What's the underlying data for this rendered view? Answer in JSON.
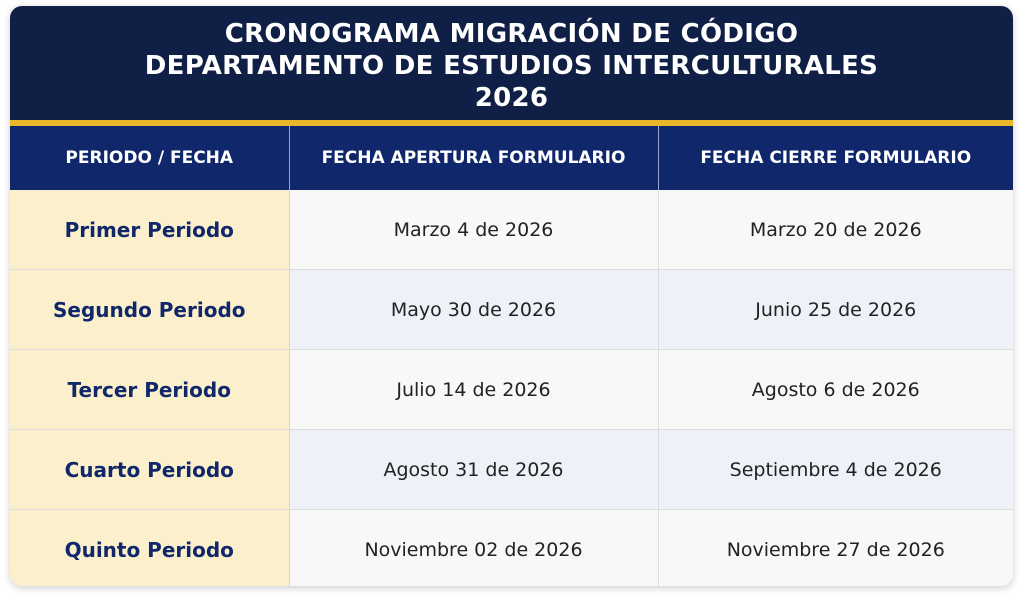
{
  "header": {
    "title_lines": [
      "CRONOGRAMA MIGRACIÓN DE CÓDIGO",
      "DEPARTAMENTO DE ESTUDIOS INTERCULTURALES",
      "2026"
    ]
  },
  "table": {
    "columns": [
      "PERIODO / FECHA",
      "FECHA APERTURA FORMULARIO",
      "FECHA CIERRE FORMULARIO"
    ],
    "rows": [
      [
        "Primer Periodo",
        "Marzo 4 de 2026",
        "Marzo 20 de 2026"
      ],
      [
        "Segundo Periodo",
        "Mayo 30 de 2026",
        "Junio 25 de 2026"
      ],
      [
        "Tercer Periodo",
        "Julio 14 de 2026",
        "Agosto 6 de 2026"
      ],
      [
        "Cuarto Periodo",
        "Agosto 31 de 2026",
        "Septiembre 4 de 2026"
      ],
      [
        "Quinto Periodo",
        "Noviembre 02 de 2026",
        "Noviembre 27 de 2026"
      ]
    ]
  }
}
